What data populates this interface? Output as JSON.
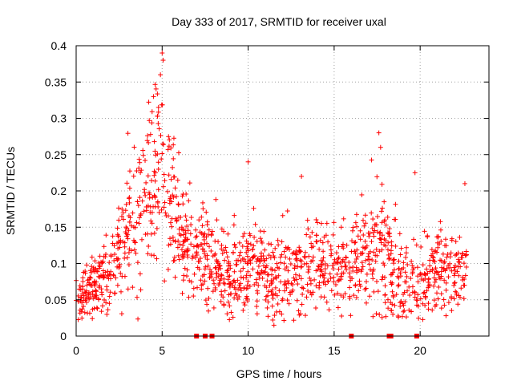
{
  "chart_data": {
    "type": "scatter",
    "title": "Day 333 of 2017, SRMTID for receiver uxal",
    "xlabel": "GPS time / hours",
    "ylabel": "SRMTID / TECUs",
    "xlim": [
      0,
      24
    ],
    "ylim": [
      0,
      0.4
    ],
    "grid": true,
    "marker": "+",
    "color": "#ff0000",
    "x_ticks": [
      0,
      5,
      10,
      15,
      20
    ],
    "y_ticks": [
      0,
      0.05,
      0.1,
      0.15,
      0.2,
      0.25,
      0.3,
      0.35,
      0.4
    ],
    "x_tick_labels": [
      "0",
      "5",
      "10",
      "15",
      "20"
    ],
    "y_tick_labels": [
      "0",
      "0.05",
      "0.1",
      "0.15",
      "0.2",
      "0.25",
      "0.3",
      "0.35",
      "0.4"
    ],
    "envelope": {
      "description": "approximate median and spread of the scattered SRMTID values versus time",
      "hours": [
        0,
        0.5,
        1,
        1.5,
        2,
        2.5,
        3,
        3.5,
        4,
        4.5,
        5,
        5.5,
        6,
        6.5,
        7,
        8,
        9,
        10,
        11,
        12,
        13,
        14,
        15,
        16,
        17,
        17.5,
        18,
        19,
        19.5,
        20,
        21,
        22,
        22.7
      ],
      "median": [
        0.05,
        0.06,
        0.07,
        0.08,
        0.08,
        0.1,
        0.14,
        0.15,
        0.2,
        0.22,
        0.24,
        0.18,
        0.15,
        0.13,
        0.11,
        0.1,
        0.09,
        0.1,
        0.09,
        0.085,
        0.09,
        0.09,
        0.1,
        0.1,
        0.11,
        0.13,
        0.1,
        0.08,
        0.07,
        0.08,
        0.09,
        0.1,
        0.11
      ],
      "spread": [
        0.015,
        0.02,
        0.025,
        0.025,
        0.03,
        0.04,
        0.05,
        0.05,
        0.06,
        0.07,
        0.08,
        0.05,
        0.04,
        0.035,
        0.03,
        0.03,
        0.03,
        0.035,
        0.03,
        0.03,
        0.035,
        0.03,
        0.03,
        0.035,
        0.04,
        0.05,
        0.04,
        0.03,
        0.025,
        0.03,
        0.03,
        0.035,
        0.04
      ]
    },
    "peaks": [
      {
        "x": 5.0,
        "y": 0.39
      },
      {
        "x": 4.9,
        "y": 0.36
      },
      {
        "x": 4.5,
        "y": 0.33
      },
      {
        "x": 17.6,
        "y": 0.28
      },
      {
        "x": 17.7,
        "y": 0.26
      },
      {
        "x": 10.0,
        "y": 0.24
      },
      {
        "x": 19.7,
        "y": 0.225
      },
      {
        "x": 13.1,
        "y": 0.22
      },
      {
        "x": 22.6,
        "y": 0.21
      },
      {
        "x": 11.5,
        "y": 0.015
      }
    ],
    "zero_markers_hours": [
      7.0,
      7.5,
      7.9,
      16.0,
      18.2,
      18.3,
      19.8
    ]
  }
}
